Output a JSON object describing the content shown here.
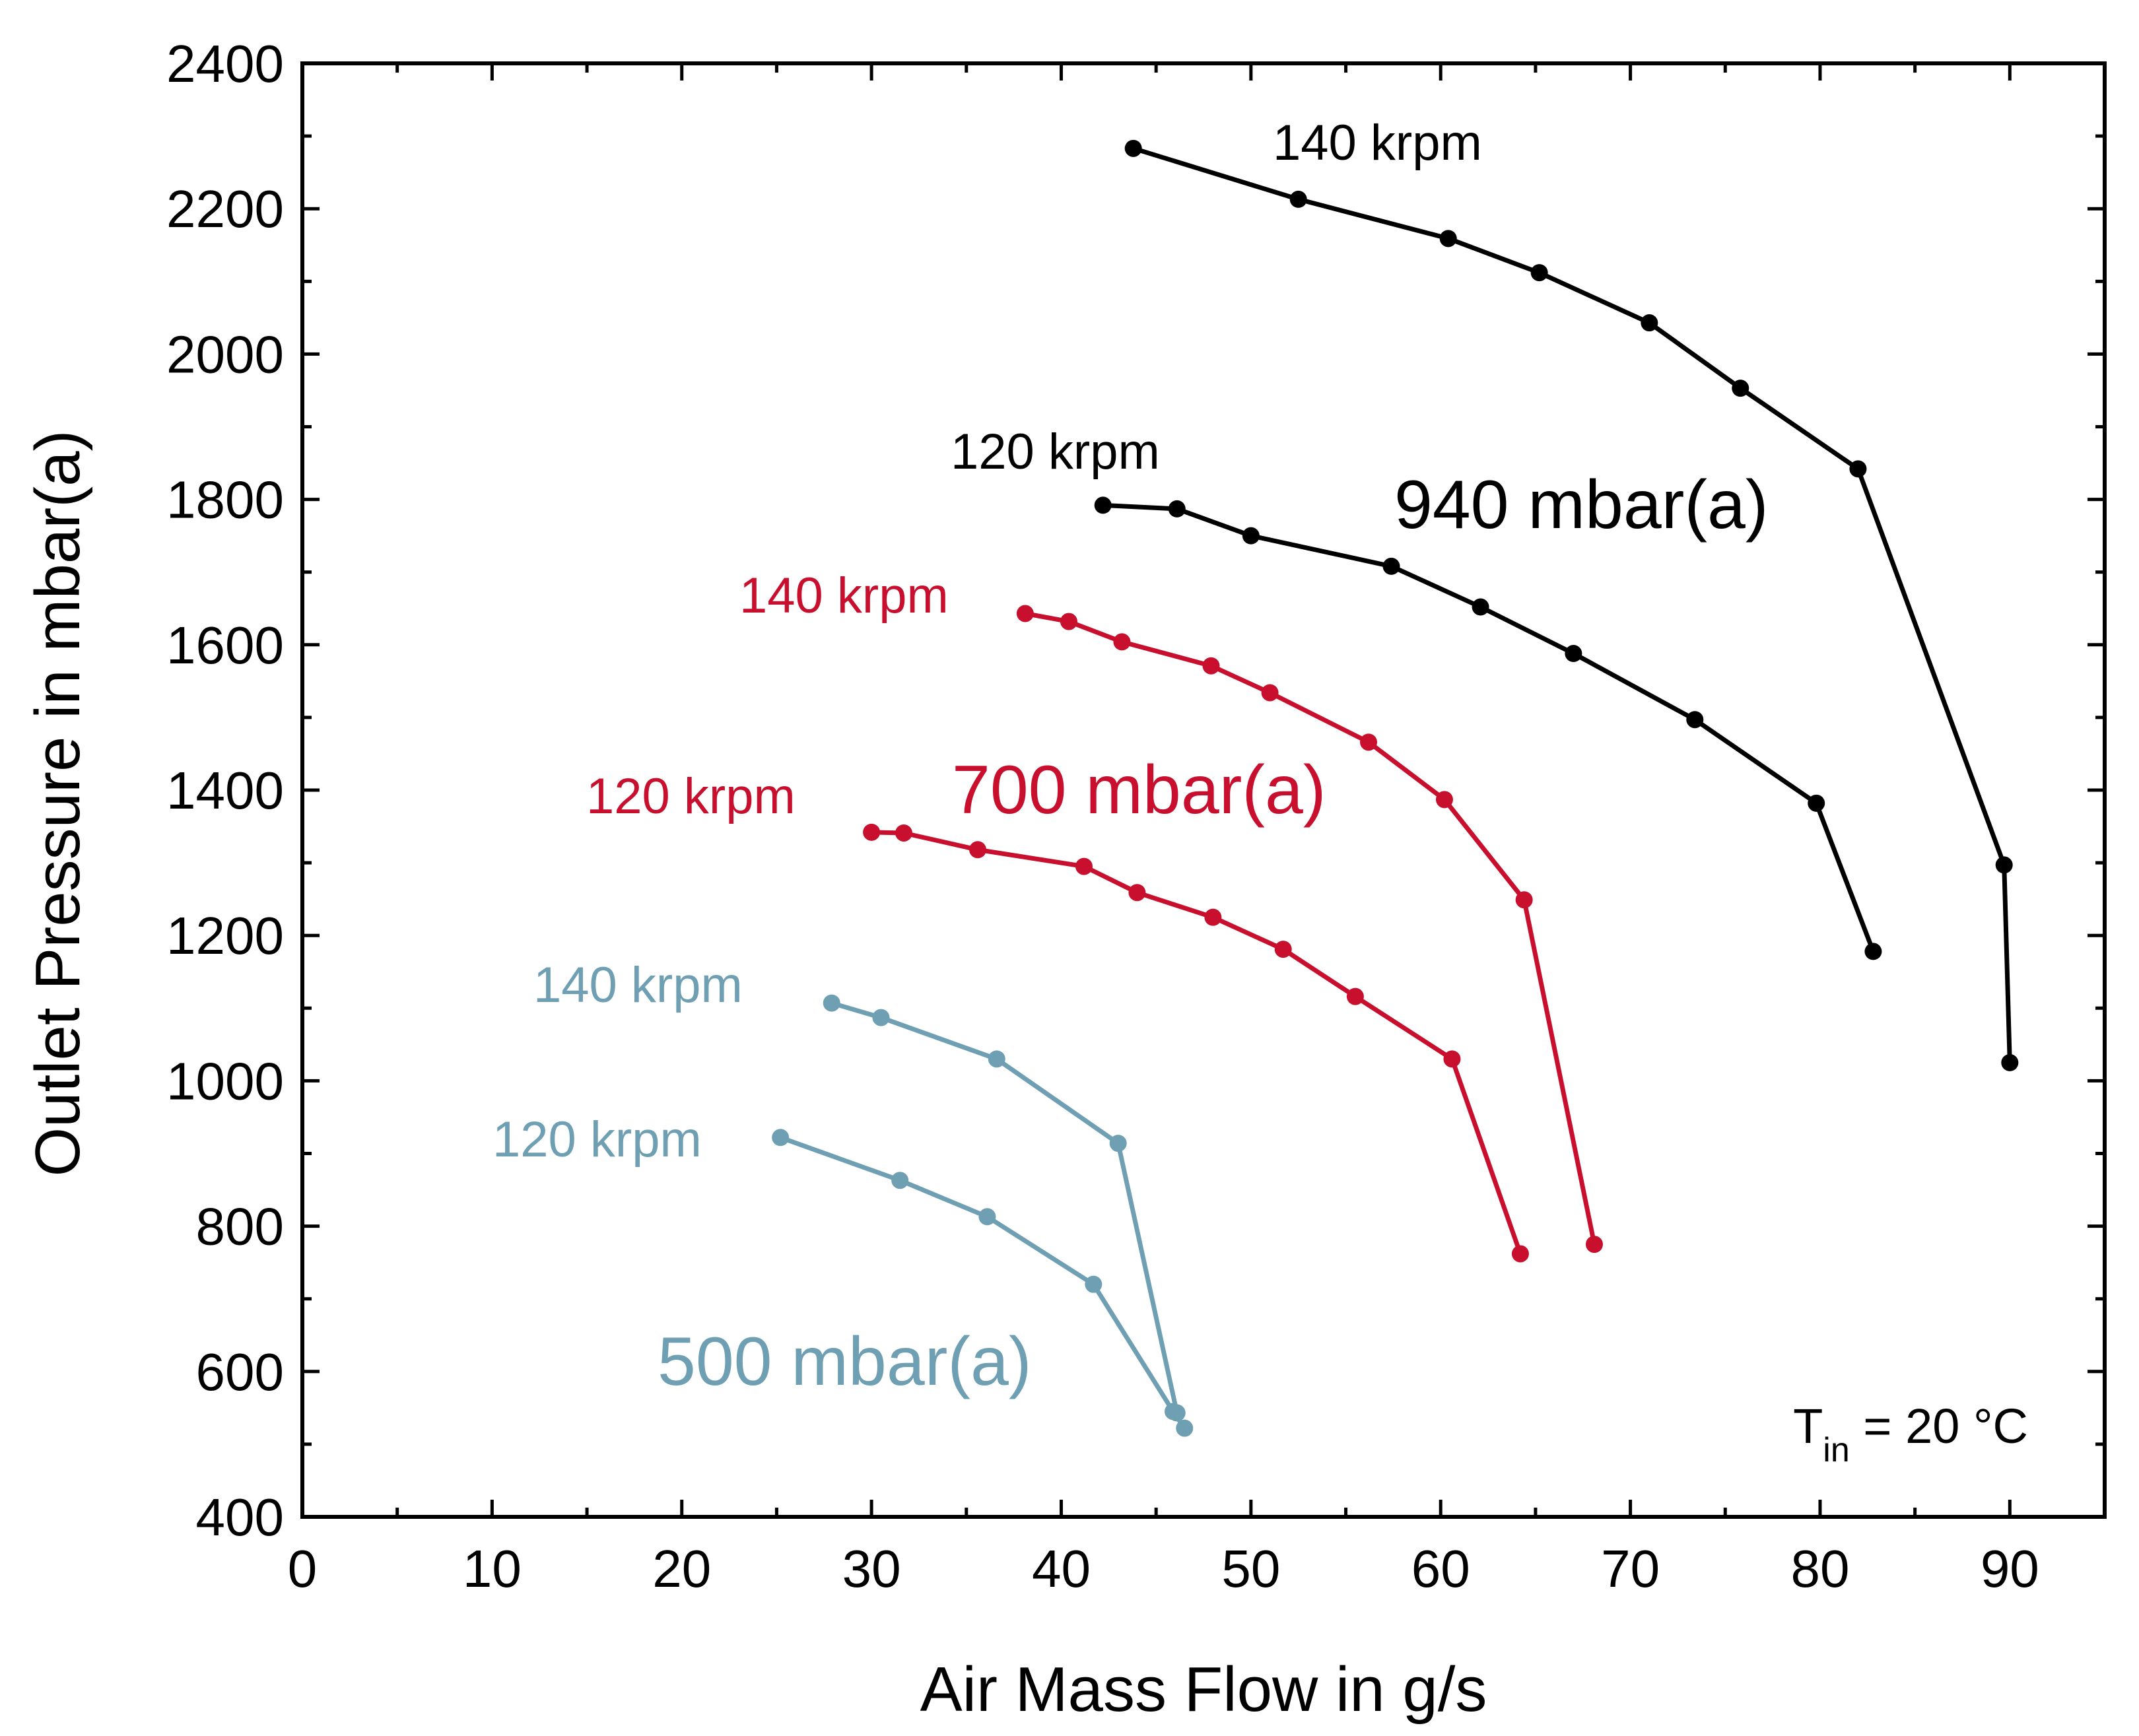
{
  "chart_data": {
    "type": "line",
    "xlabel": "Air Mass Flow in g/s",
    "ylabel": "Outlet Pressure  in  mbar(a)",
    "xlim": [
      0,
      95
    ],
    "ylim": [
      400,
      2400
    ],
    "xticks": [
      0,
      10,
      20,
      30,
      40,
      50,
      60,
      70,
      80,
      90
    ],
    "yticks": [
      400,
      600,
      800,
      1000,
      1200,
      1400,
      1600,
      1800,
      2000,
      2200,
      2400
    ],
    "xtick_labels": [
      "0",
      "10",
      "20",
      "30",
      "40",
      "50",
      "60",
      "70",
      "80",
      "90"
    ],
    "ytick_labels": [
      "400",
      "600",
      "800",
      "1000",
      "1200",
      "1400",
      "1600",
      "1800",
      "2000",
      "2200",
      "2400"
    ],
    "grid": false,
    "colors": {
      "black": "#000000",
      "red": "#c8102e",
      "blue": "#6f9fb3"
    },
    "annotation": {
      "prefix": "T",
      "subscript": "in",
      "suffix": " = 20 °C"
    },
    "groups": [
      {
        "id": "g940",
        "label": "940 mbar(a)",
        "color": "#000000"
      },
      {
        "id": "g700",
        "label": "700 mbar(a)",
        "color": "#c8102e"
      },
      {
        "id": "g500",
        "label": "500 mbar(a)",
        "color": "#6f9fb3"
      }
    ],
    "series": [
      {
        "name": "940 mbar(a) 140 krpm",
        "label": "140 krpm",
        "group": "g940",
        "color": "#000000",
        "x": [
          43.8,
          52.5,
          60.4,
          65.2,
          71.0,
          75.8,
          82.0,
          89.7,
          90.0
        ],
        "y": [
          2283,
          2213,
          2159,
          2112,
          2043,
          1953,
          1842,
          1297,
          1025
        ]
      },
      {
        "name": "940 mbar(a) 120 krpm",
        "label": "120 krpm",
        "group": "g940",
        "color": "#000000",
        "x": [
          42.2,
          46.1,
          50.0,
          57.4,
          62.1,
          67.0,
          73.4,
          79.8,
          82.8
        ],
        "y": [
          1792,
          1787,
          1750,
          1708,
          1652,
          1588,
          1497,
          1382,
          1178
        ]
      },
      {
        "name": "700 mbar(a) 140 krpm",
        "label": "140 krpm",
        "group": "g700",
        "color": "#c8102e",
        "x": [
          38.1,
          40.4,
          43.2,
          47.9,
          51.0,
          56.2,
          60.2,
          64.4,
          68.1
        ],
        "y": [
          1643,
          1632,
          1604,
          1571,
          1534,
          1466,
          1387,
          1249,
          775
        ]
      },
      {
        "name": "700 mbar(a) 120 krpm",
        "label": "120 krpm",
        "group": "g700",
        "color": "#c8102e",
        "x": [
          30.0,
          31.7,
          35.6,
          41.2,
          44.0,
          48.0,
          51.7,
          55.5,
          60.6,
          64.2
        ],
        "y": [
          1342,
          1341,
          1318,
          1295,
          1259,
          1225,
          1181,
          1116,
          1030,
          762
        ]
      },
      {
        "name": "500 mbar(a) 140 krpm",
        "label": "140 krpm",
        "group": "g500",
        "color": "#6f9fb3",
        "x": [
          27.9,
          30.5,
          36.6,
          43.0,
          46.1
        ],
        "y": [
          1107,
          1087,
          1030,
          914,
          543
        ]
      },
      {
        "name": "500 mbar(a) 120 krpm",
        "label": "120 krpm",
        "group": "g500",
        "color": "#6f9fb3",
        "x": [
          25.2,
          31.5,
          36.1,
          41.7,
          45.9,
          46.5
        ],
        "y": [
          922,
          863,
          813,
          720,
          545,
          522
        ]
      }
    ]
  }
}
